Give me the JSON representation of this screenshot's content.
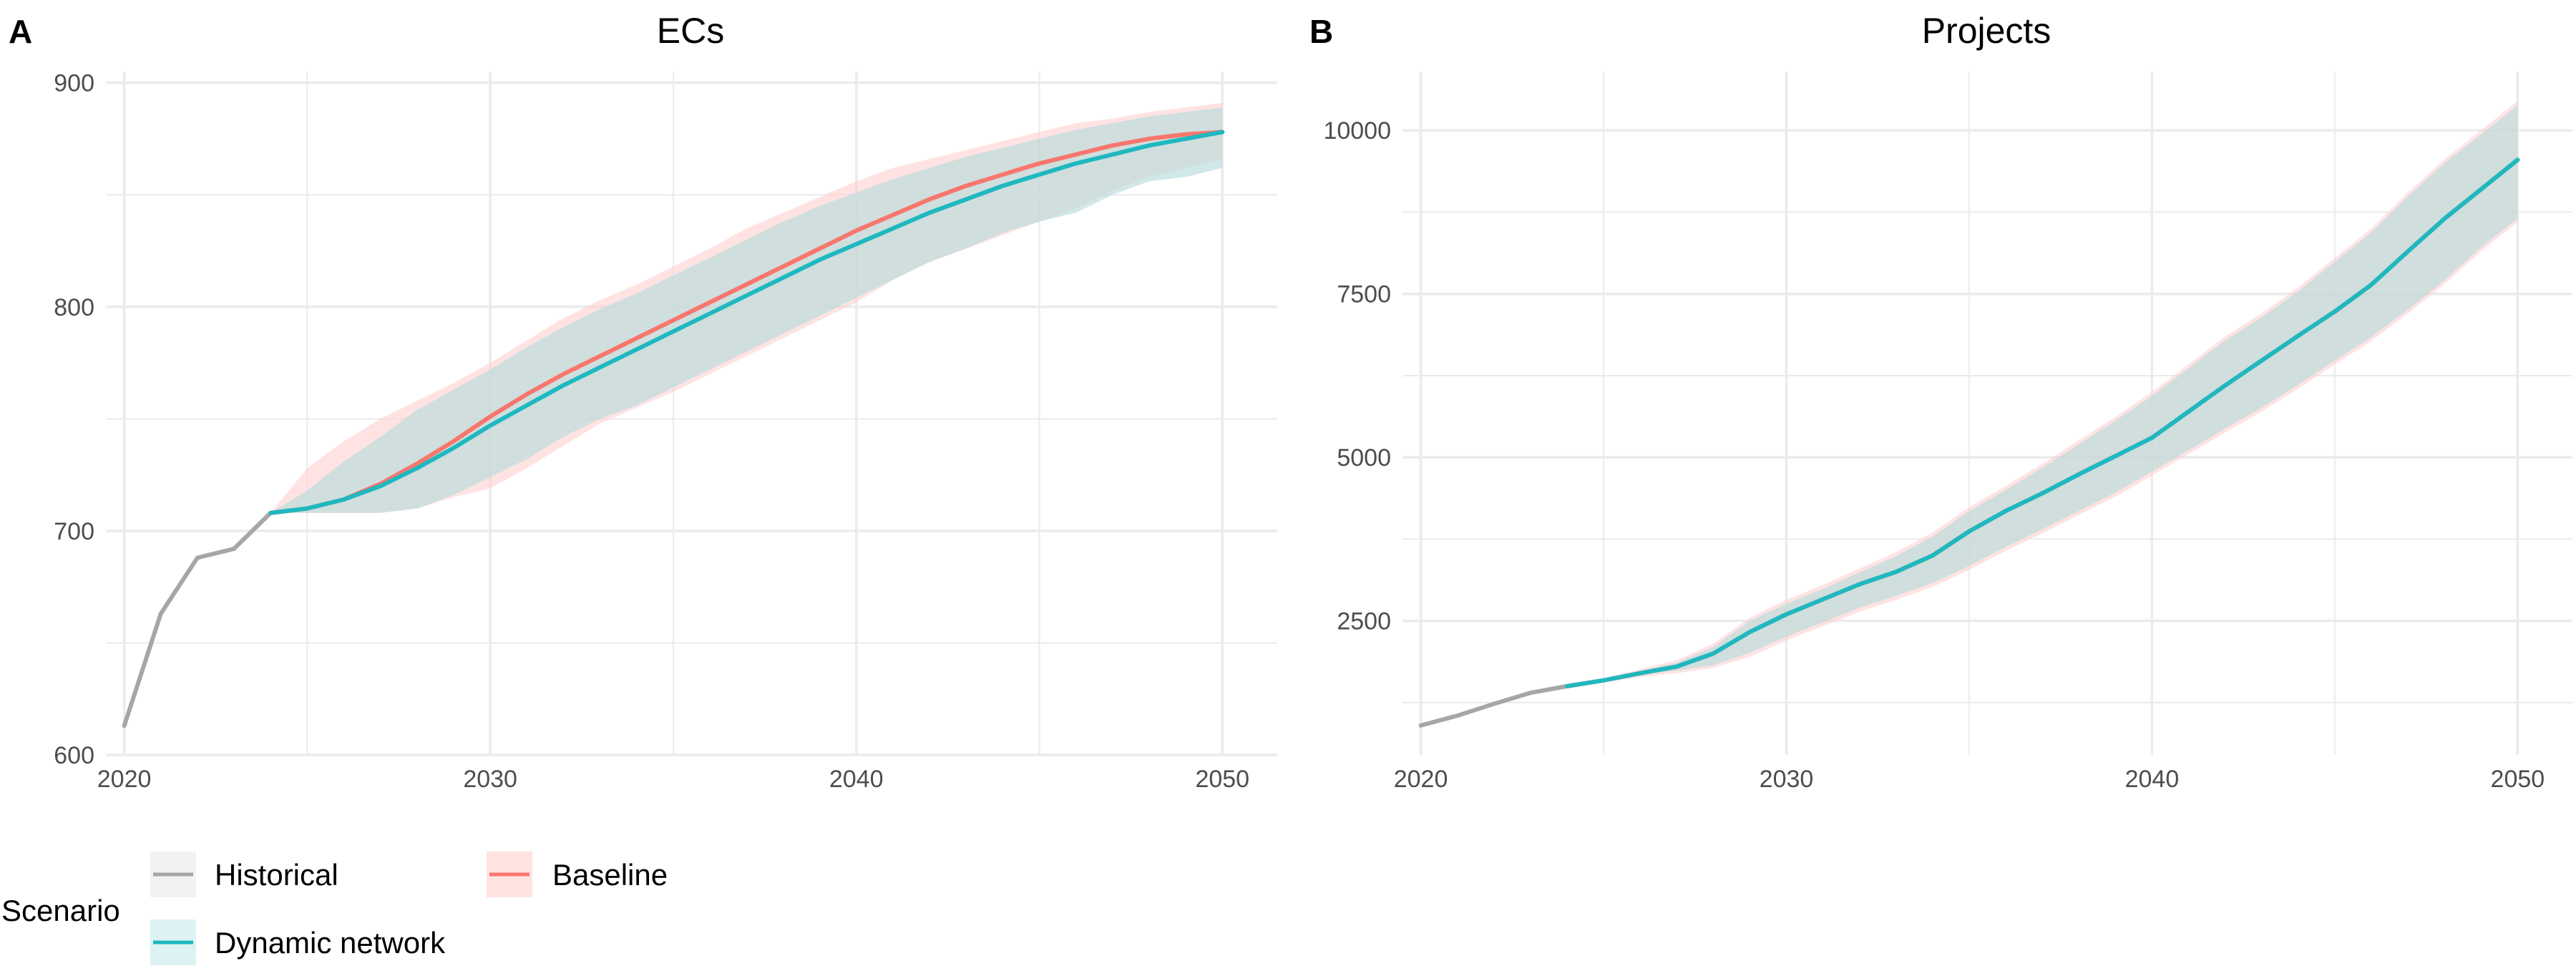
{
  "chart_data": [
    {
      "type": "line",
      "panel": "A",
      "title": "ECs",
      "xlabel": "",
      "ylabel": "",
      "xlim": [
        2019.5,
        2051.5
      ],
      "ylim": [
        600,
        905
      ],
      "x_ticks": [
        2020,
        2030,
        2040,
        2050
      ],
      "y_ticks": [
        600,
        700,
        800,
        900
      ],
      "grid": true,
      "series": [
        {
          "name": "Historical",
          "color": "#a6a6a6",
          "x": [
            2020,
            2021,
            2022,
            2023,
            2024
          ],
          "y": [
            613,
            663,
            688,
            692,
            708
          ]
        },
        {
          "name": "Baseline",
          "color": "#f8766d",
          "x": [
            2024,
            2025,
            2026,
            2027,
            2028,
            2029,
            2030,
            2031,
            2032,
            2033,
            2034,
            2035,
            2036,
            2037,
            2038,
            2039,
            2040,
            2041,
            2042,
            2043,
            2044,
            2045,
            2046,
            2047,
            2048,
            2049,
            2050
          ],
          "y": [
            708,
            710,
            714,
            721,
            730,
            740,
            751,
            761,
            770,
            778,
            786,
            794,
            802,
            810,
            818,
            826,
            834,
            841,
            848,
            854,
            859,
            864,
            868,
            872,
            875,
            877,
            878
          ],
          "lower": [
            708,
            708,
            708,
            708,
            710,
            715,
            719,
            728,
            738,
            748,
            755,
            762,
            770,
            778,
            786,
            794,
            802,
            812,
            820,
            826,
            832,
            838,
            844,
            852,
            858,
            862,
            866
          ],
          "upper": [
            708,
            728,
            740,
            750,
            758,
            766,
            775,
            785,
            795,
            803,
            810,
            818,
            826,
            835,
            842,
            849,
            856,
            862,
            866,
            870,
            874,
            878,
            882,
            884,
            887,
            889,
            891
          ]
        },
        {
          "name": "Dynamic network",
          "color": "#1fb8bf",
          "x": [
            2024,
            2025,
            2026,
            2027,
            2028,
            2029,
            2030,
            2031,
            2032,
            2033,
            2034,
            2035,
            2036,
            2037,
            2038,
            2039,
            2040,
            2041,
            2042,
            2043,
            2044,
            2045,
            2046,
            2047,
            2048,
            2049,
            2050
          ],
          "y": [
            708,
            710,
            714,
            720,
            728,
            737,
            747,
            756,
            765,
            773,
            781,
            789,
            797,
            805,
            813,
            821,
            828,
            835,
            842,
            848,
            854,
            859,
            864,
            868,
            872,
            875,
            878
          ],
          "lower": [
            708,
            708,
            708,
            708,
            710,
            716,
            724,
            732,
            742,
            750,
            756,
            764,
            772,
            780,
            788,
            796,
            804,
            812,
            820,
            826,
            833,
            838,
            842,
            850,
            856,
            858,
            862
          ],
          "upper": [
            708,
            718,
            731,
            742,
            754,
            763,
            772,
            782,
            791,
            799,
            806,
            814,
            822,
            830,
            838,
            845,
            851,
            857,
            862,
            867,
            871,
            875,
            879,
            882,
            885,
            887,
            889
          ]
        }
      ]
    },
    {
      "type": "line",
      "panel": "B",
      "title": "Projects",
      "xlabel": "",
      "ylabel": "",
      "xlim": [
        2019.5,
        2051.5
      ],
      "ylim": [
        450,
        10900
      ],
      "x_ticks": [
        2020,
        2030,
        2040,
        2050
      ],
      "y_ticks": [
        2500,
        5000,
        7500,
        10000
      ],
      "grid": true,
      "series": [
        {
          "name": "Historical",
          "color": "#a6a6a6",
          "x": [
            2020,
            2021,
            2022,
            2023,
            2024
          ],
          "y": [
            900,
            1050,
            1230,
            1400,
            1500
          ]
        },
        {
          "name": "Baseline",
          "color": "#f8766d",
          "x": [
            2024,
            2025,
            2026,
            2027,
            2028,
            2029,
            2030,
            2031,
            2032,
            2033,
            2034,
            2035,
            2036,
            2037,
            2038,
            2039,
            2040,
            2041,
            2042,
            2043,
            2044,
            2045,
            2046,
            2047,
            2048,
            2049,
            2050
          ],
          "y": [
            1500,
            1590,
            1700,
            1800,
            2000,
            2330,
            2600,
            2830,
            3060,
            3250,
            3500,
            3870,
            4180,
            4450,
            4740,
            5020,
            5300,
            5700,
            6100,
            6480,
            6860,
            7230,
            7640,
            8150,
            8650,
            9100,
            9550
          ],
          "lower": [
            1500,
            1560,
            1640,
            1700,
            1780,
            1950,
            2200,
            2420,
            2640,
            2820,
            3020,
            3280,
            3570,
            3840,
            4120,
            4400,
            4720,
            5050,
            5380,
            5700,
            6050,
            6420,
            6780,
            7200,
            7650,
            8150,
            8600
          ],
          "upper": [
            1500,
            1620,
            1760,
            1900,
            2150,
            2550,
            2820,
            3050,
            3300,
            3550,
            3850,
            4240,
            4560,
            4900,
            5260,
            5620,
            6000,
            6420,
            6850,
            7200,
            7600,
            8050,
            8500,
            9050,
            9560,
            10000,
            10450
          ]
        },
        {
          "name": "Dynamic network",
          "color": "#1fb8bf",
          "x": [
            2024,
            2025,
            2026,
            2027,
            2028,
            2029,
            2030,
            2031,
            2032,
            2033,
            2034,
            2035,
            2036,
            2037,
            2038,
            2039,
            2040,
            2041,
            2042,
            2043,
            2044,
            2045,
            2046,
            2047,
            2048,
            2049,
            2050
          ],
          "y": [
            1500,
            1590,
            1700,
            1800,
            2000,
            2330,
            2600,
            2830,
            3060,
            3250,
            3500,
            3870,
            4180,
            4450,
            4740,
            5020,
            5300,
            5700,
            6100,
            6480,
            6860,
            7230,
            7640,
            8150,
            8650,
            9100,
            9550
          ],
          "lower": [
            1500,
            1580,
            1670,
            1740,
            1820,
            2010,
            2260,
            2480,
            2700,
            2880,
            3080,
            3340,
            3630,
            3900,
            4180,
            4460,
            4780,
            5110,
            5440,
            5760,
            6110,
            6480,
            6840,
            7260,
            7710,
            8210,
            8660
          ],
          "upper": [
            1500,
            1600,
            1730,
            1860,
            2100,
            2500,
            2760,
            2990,
            3240,
            3490,
            3790,
            4180,
            4500,
            4840,
            5200,
            5560,
            5940,
            6360,
            6790,
            7140,
            7540,
            7990,
            8440,
            8990,
            9500,
            9940,
            10380
          ]
        }
      ]
    }
  ],
  "legend": {
    "title": "Scenario",
    "position": "bottom-left",
    "items": [
      {
        "label": "Historical",
        "color": "#a6a6a6",
        "key": "Historical"
      },
      {
        "label": "Baseline",
        "color": "#f8766d",
        "key": "Baseline"
      },
      {
        "label": "Dynamic network",
        "color": "#1fb8bf",
        "key": "Dynamic network"
      }
    ]
  },
  "colors": {
    "grid": "#ebebeb",
    "baseline_ribbon": "#ffcccc",
    "dynamic_ribbon": "#b7dcdc"
  }
}
